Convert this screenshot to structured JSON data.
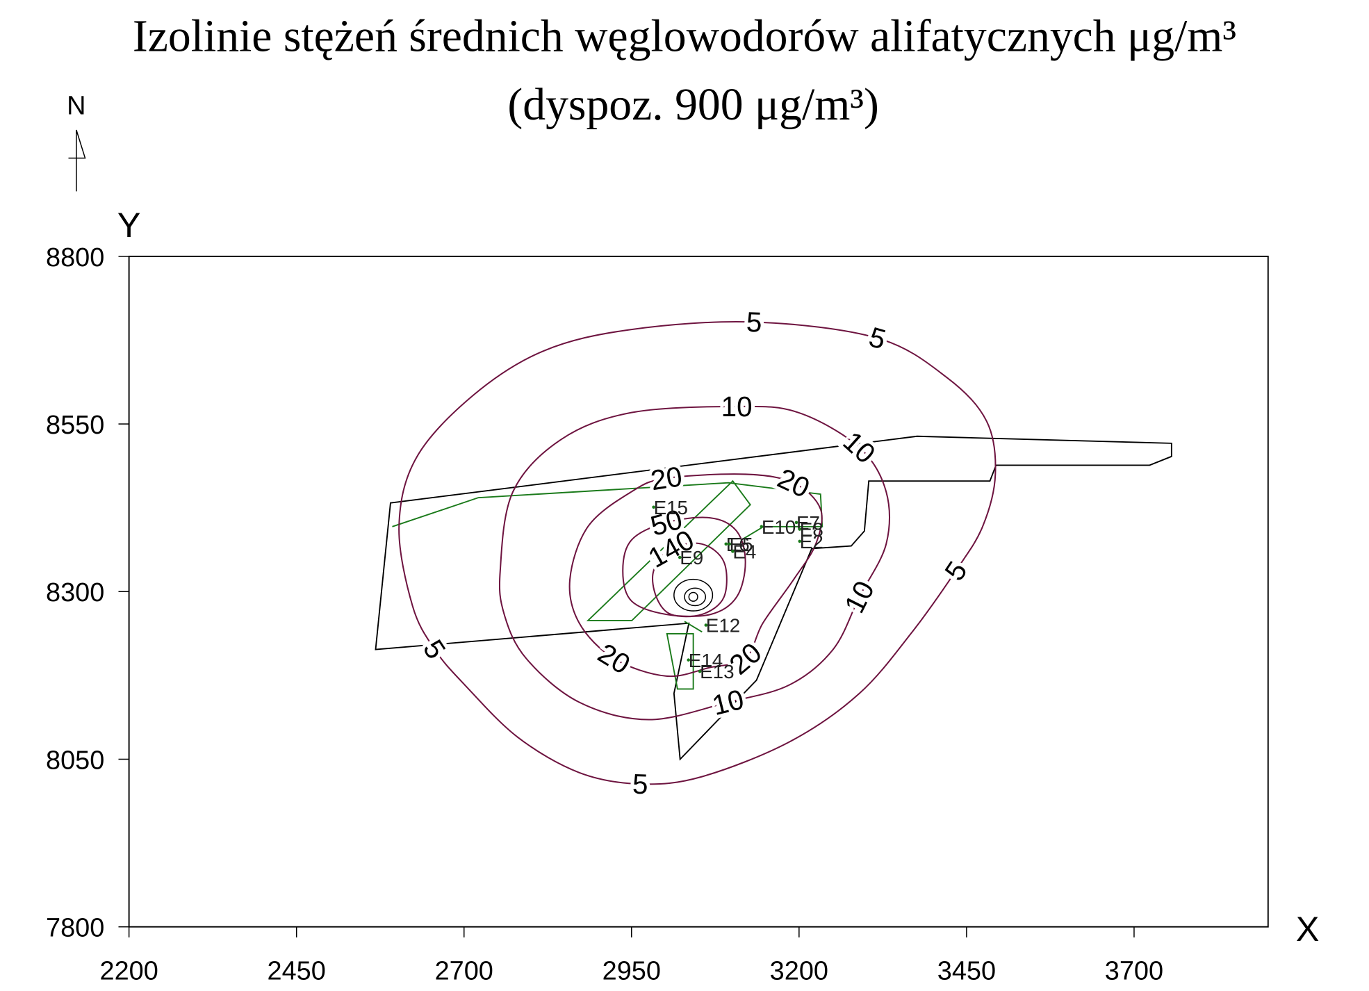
{
  "chart_data": {
    "type": "contour",
    "title": "Izolinie stężeń średnich węglowodorów alifatycznych μg/m³",
    "subtitle": "(dyspoz. 900 μg/m³)",
    "north_label": "N",
    "x_label": "X",
    "y_label": "Y",
    "xlim": [
      2200,
      3900
    ],
    "ylim": [
      7800,
      8800
    ],
    "xticks": [
      2200,
      2450,
      2700,
      2950,
      3200,
      3450,
      3700
    ],
    "yticks": [
      7800,
      8050,
      8300,
      8550,
      8800
    ],
    "contour_color": "#6e1440",
    "contours": [
      {
        "level": 5,
        "x": [
          2623,
          2603,
          2629,
          2714,
          2819,
          2950,
          3133,
          3317,
          3421,
          3480,
          3493,
          3474,
          3434,
          3369,
          3290,
          3186,
          3055,
          2963,
          2872,
          2780,
          2701,
          2656
        ],
        "y": [
          8279,
          8397,
          8500,
          8593,
          8659,
          8691,
          8702,
          8678,
          8619,
          8554,
          8475,
          8397,
          8331,
          8240,
          8148,
          8076,
          8024,
          8013,
          8030,
          8083,
          8161,
          8214
        ]
      },
      {
        "level": 10,
        "x": [
          2754,
          2773,
          2845,
          2950,
          3107,
          3199,
          3290,
          3330,
          3330,
          3290,
          3251,
          3186,
          3094,
          2976,
          2872,
          2793,
          2760
        ],
        "y": [
          8331,
          8449,
          8527,
          8567,
          8576,
          8567,
          8515,
          8449,
          8371,
          8292,
          8214,
          8161,
          8135,
          8109,
          8135,
          8200,
          8266
        ]
      },
      {
        "level": 20,
        "x": [
          2858,
          2885,
          2950,
          3002,
          3120,
          3192,
          3232,
          3225,
          3192,
          3146,
          3120,
          3068,
          3002,
          2924,
          2872
        ],
        "y": [
          8318,
          8397,
          8449,
          8469,
          8475,
          8462,
          8423,
          8371,
          8318,
          8253,
          8200,
          8187,
          8174,
          8200,
          8253
        ]
      },
      {
        "level": 50,
        "x": [
          2937,
          2950,
          3002,
          3068,
          3107,
          3120,
          3107,
          3068,
          3002,
          2950
        ],
        "y": [
          8331,
          8377,
          8403,
          8410,
          8390,
          8344,
          8292,
          8266,
          8266,
          8286
        ]
      },
      {
        "level": 140,
        "x": [
          2983,
          3009,
          3055,
          3088,
          3088,
          3055,
          3009,
          2987
        ],
        "y": [
          8331,
          8364,
          8371,
          8344,
          8292,
          8266,
          8266,
          8292
        ]
      }
    ],
    "source_color": "#1a7a1a",
    "sources": [
      {
        "label": "E15",
        "x": 2983,
        "y": 8426
      },
      {
        "label": "E10",
        "x": 3144,
        "y": 8397
      },
      {
        "label": "E7",
        "x": 3196,
        "y": 8403
      },
      {
        "label": "E8",
        "x": 3201,
        "y": 8393
      },
      {
        "label": "E6",
        "x": 3091,
        "y": 8371
      },
      {
        "label": "E5",
        "x": 3096,
        "y": 8371
      },
      {
        "label": "E4",
        "x": 3101,
        "y": 8360
      },
      {
        "label": "E2",
        "x": 3201,
        "y": 8375
      },
      {
        "label": "E9",
        "x": 3022,
        "y": 8351
      },
      {
        "label": "E12",
        "x": 3061,
        "y": 8250
      },
      {
        "label": "E14",
        "x": 3035,
        "y": 8198
      },
      {
        "label": "E13",
        "x": 3052,
        "y": 8181
      }
    ]
  }
}
